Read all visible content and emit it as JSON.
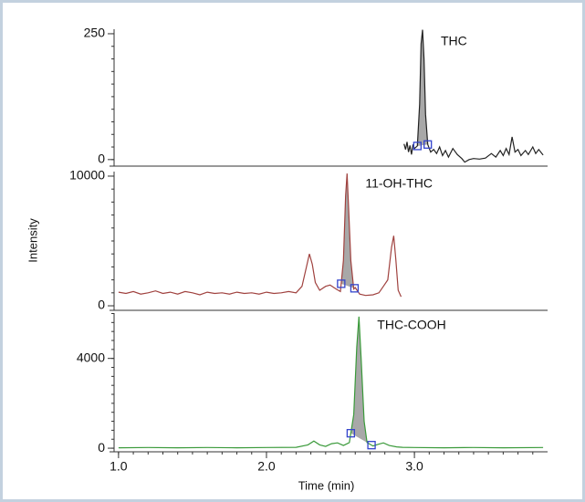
{
  "chart_data": [
    {
      "type": "line",
      "x": [
        2.93,
        2.94,
        2.95,
        2.96,
        2.97,
        2.98,
        2.99,
        3.0,
        3.02,
        3.035,
        3.045,
        3.055,
        3.065,
        3.075,
        3.09,
        3.11,
        3.13,
        3.15,
        3.17,
        3.19,
        3.21,
        3.23,
        3.26,
        3.29,
        3.32,
        3.34,
        3.37,
        3.4,
        3.44,
        3.48,
        3.52,
        3.55,
        3.58,
        3.6,
        3.62,
        3.64,
        3.66,
        3.68,
        3.7,
        3.72,
        3.75,
        3.77,
        3.8,
        3.82,
        3.84,
        3.87
      ],
      "series": [
        {
          "name": "THC",
          "color": "#222222",
          "values": [
            31,
            20,
            35,
            15,
            28,
            10,
            30,
            22,
            27,
            110,
            230,
            258,
            200,
            90,
            30,
            15,
            20,
            12,
            25,
            8,
            18,
            5,
            22,
            10,
            2,
            -5,
            0,
            2,
            1,
            3,
            12,
            5,
            18,
            8,
            22,
            10,
            45,
            15,
            20,
            8,
            18,
            10,
            25,
            12,
            20,
            9
          ]
        }
      ],
      "integration": [
        3.02,
        3.09
      ],
      "ylim": [
        -13,
        259
      ],
      "yticks": [
        0,
        250
      ]
    },
    {
      "type": "line",
      "x": [
        1.0,
        1.05,
        1.1,
        1.15,
        1.2,
        1.25,
        1.3,
        1.35,
        1.4,
        1.45,
        1.5,
        1.55,
        1.6,
        1.65,
        1.7,
        1.75,
        1.8,
        1.85,
        1.9,
        1.95,
        2.0,
        2.05,
        2.1,
        2.15,
        2.2,
        2.24,
        2.27,
        2.29,
        2.31,
        2.33,
        2.36,
        2.4,
        2.43,
        2.47,
        2.5,
        2.52,
        2.535,
        2.545,
        2.555,
        2.57,
        2.59,
        2.6,
        2.63,
        2.67,
        2.72,
        2.76,
        2.79,
        2.82,
        2.845,
        2.86,
        2.875,
        2.89,
        2.91
      ],
      "series": [
        {
          "name": "11-OH-THC",
          "color": "#a0423f",
          "values": [
            1050,
            950,
            1100,
            900,
            1000,
            1150,
            950,
            1050,
            900,
            1100,
            1000,
            850,
            1050,
            950,
            1000,
            900,
            1050,
            950,
            1000,
            900,
            1050,
            950,
            1000,
            1100,
            1000,
            1500,
            3000,
            4000,
            3200,
            1800,
            1200,
            1500,
            1600,
            1300,
            1100,
            3500,
            8500,
            10200,
            7500,
            3500,
            1300,
            1400,
            900,
            800,
            850,
            1000,
            1500,
            2000,
            4500,
            5400,
            3500,
            1200,
            700
          ]
        }
      ],
      "integration": [
        2.505,
        2.595
      ],
      "ylabel": "Intensity",
      "ylim": [
        -350,
        10350
      ],
      "yticks": [
        0,
        10000
      ]
    },
    {
      "type": "line",
      "x": [
        1.0,
        1.2,
        1.4,
        1.6,
        1.8,
        2.0,
        2.2,
        2.28,
        2.32,
        2.36,
        2.4,
        2.44,
        2.48,
        2.52,
        2.56,
        2.59,
        2.61,
        2.625,
        2.64,
        2.66,
        2.68,
        2.72,
        2.76,
        2.79,
        2.83,
        2.88,
        2.92,
        3.0,
        3.2,
        3.4,
        3.6,
        3.87
      ],
      "series": [
        {
          "name": "THC-COOH",
          "color": "#3a9a3a",
          "values": [
            20,
            30,
            20,
            30,
            20,
            30,
            40,
            150,
            320,
            150,
            80,
            200,
            240,
            120,
            250,
            1500,
            4500,
            5860,
            4000,
            1200,
            250,
            100,
            180,
            240,
            120,
            60,
            40,
            30,
            20,
            30,
            20,
            30
          ]
        }
      ],
      "integration": [
        2.57,
        2.71
      ],
      "ylim": [
        -160,
        6020
      ],
      "yticks": [
        0,
        4000
      ],
      "xlabel": "Time (min)",
      "xlim": [
        0.97,
        3.9
      ],
      "xticks": [
        {
          "value": 1,
          "label": "1.0"
        },
        {
          "value": 2,
          "label": "2.0"
        },
        {
          "value": 3,
          "label": "3.0"
        }
      ]
    }
  ]
}
